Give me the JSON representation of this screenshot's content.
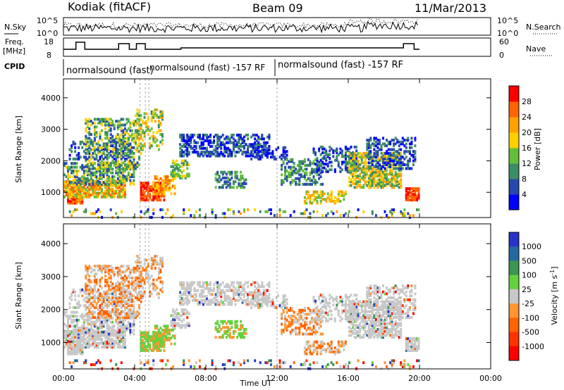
{
  "header": {
    "station": "Kodiak (fitACF)",
    "beam": "Beam 09",
    "date": "11/Mar/2013"
  },
  "top_panels": {
    "nsky_label": "N.Sky",
    "nsearch_label": "N.Search",
    "freq_label_1": "Freq.",
    "freq_label_2": "[MHz]",
    "nave_label": "Nave",
    "cpid_label": "CPID",
    "nsky_ticks": [
      "10^5",
      "10^0"
    ],
    "nsearch_ticks": [
      "10^5",
      "10^0"
    ],
    "freq_ticks": [
      "18",
      "8"
    ],
    "nave_ticks": [
      "60",
      "0"
    ],
    "cpid_texts": [
      "normalsound (fast)",
      "normalsound (fast) -157 RF",
      "normalsound (fast) -157 RF"
    ]
  },
  "chart_data": [
    {
      "type": "heatmap",
      "panel": "power",
      "ylabel": "Slant Range [km]",
      "xlabel": "",
      "y_ticks": [
        "1000",
        "2000",
        "3000",
        "4000"
      ],
      "ylim": [
        200,
        4600
      ],
      "colorbar_label": "Power [dB]",
      "colorbar_ticks": [
        "4",
        "8",
        "12",
        "16",
        "20",
        "24",
        "28"
      ],
      "colors": [
        "#0000ff",
        "#2848b0",
        "#3c8c64",
        "#64be3c",
        "#ffd000",
        "#ffa000",
        "#ff6400",
        "#ff0000"
      ]
    },
    {
      "type": "heatmap",
      "panel": "velocity",
      "ylabel": "Slant Range [km]",
      "xlabel": "Time UT",
      "y_ticks": [
        "1000",
        "2000",
        "3000",
        "4000"
      ],
      "x_ticks": [
        "00:00",
        "04:00",
        "08:00",
        "12:00",
        "16:00",
        "20:00",
        "00:00"
      ],
      "ylim": [
        200,
        4600
      ],
      "colorbar_label": "Velocity [m s",
      "colorbar_sup": "-1",
      "colorbar_ticks": [
        "1000",
        "500",
        "100",
        "25",
        "-25",
        "-100",
        "-500",
        "-1000"
      ],
      "colors": [
        "#2832c8",
        "#2868a0",
        "#3c9650",
        "#64d23c",
        "#c8c8c8",
        "#ff9632",
        "#ff6400",
        "#ff3200",
        "#ff0000"
      ]
    }
  ]
}
